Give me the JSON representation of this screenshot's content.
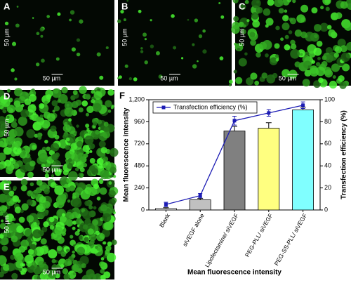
{
  "panels": [
    {
      "label": "A",
      "scale_bar": "50 µm",
      "side_label": "50 µm"
    },
    {
      "label": "B",
      "scale_bar": "50 µm",
      "side_label": "50 µm"
    },
    {
      "label": "C",
      "scale_bar": "50 µm",
      "side_label": "50 µm"
    },
    {
      "label": "D",
      "scale_bar": "50 µm",
      "side_label": "50 µm"
    },
    {
      "label": "E",
      "scale_bar": "50 µm",
      "side_label": "50 µm"
    }
  ],
  "chart_data": {
    "type": "bar",
    "label": "F",
    "x_label": "Mean fluorescence intensity",
    "y_label": "Mean fluorescence intensity",
    "y2_label": "Transfection efficiency (%)",
    "categories": [
      "Blank",
      "siVEGF alone",
      "Lipofectamine/ siVEGF",
      "PEG-PLL/ siVEGF",
      "PEG-SS-PLL/ siVEGF"
    ],
    "series": [
      {
        "type": "bar",
        "colors": [
          "#ffffff",
          "#c0c0c0",
          "#808080",
          "#ffff80",
          "#80ffff"
        ],
        "values": [
          15,
          110,
          860,
          890,
          1090
        ],
        "errors": [
          10,
          15,
          50,
          60,
          30
        ]
      },
      {
        "type": "line",
        "name": "Transfection efficiency (%)",
        "color": "#1c1cb4",
        "axis": "y2",
        "values": [
          5,
          13,
          81,
          88,
          95
        ],
        "errors": [
          2,
          2,
          4,
          3,
          3
        ]
      }
    ],
    "ylim": [
      0,
      1200
    ],
    "yticks": [
      0,
      240,
      480,
      720,
      960,
      {
        "value": 1200,
        "label": "1,200"
      }
    ],
    "y2lim": [
      0,
      100
    ],
    "y2ticks": [
      0,
      20,
      40,
      60,
      80,
      100
    ],
    "legend": "upper left"
  }
}
